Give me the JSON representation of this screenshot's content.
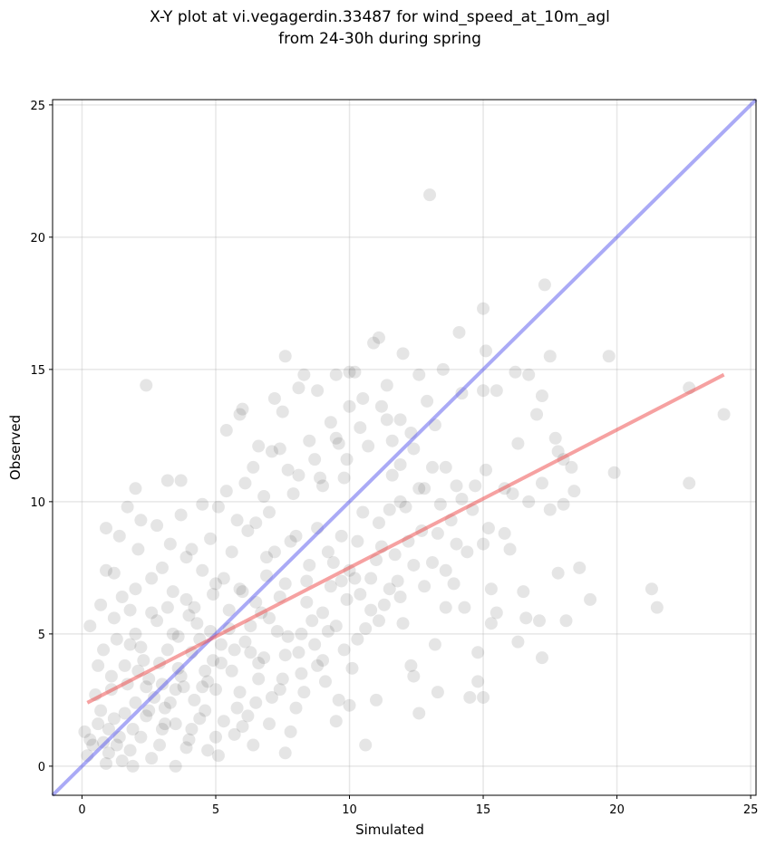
{
  "chart_data": {
    "type": "scatter",
    "title_line1": "X-Y plot at vi.vegagerdin.33487 for wind_speed_at_10m_agl",
    "title_line2": "from 24-30h during spring",
    "xlabel": "Simulated",
    "ylabel": "Observed",
    "xlim": [
      -1.1,
      25.2
    ],
    "ylim": [
      -1.1,
      25.2
    ],
    "xticks": [
      0,
      5,
      10,
      15,
      20,
      25
    ],
    "yticks": [
      0,
      5,
      10,
      15,
      20,
      25
    ],
    "grid": true,
    "point_color": "#000000",
    "point_opacity": 0.1,
    "identity_line": {
      "x": [
        -1.1,
        25.2
      ],
      "y": [
        -1.1,
        25.2
      ],
      "color": "#5555ee"
    },
    "fit_line": {
      "x": [
        0.2,
        24.0
      ],
      "y": [
        2.4,
        14.8
      ],
      "color": "#ee4444"
    },
    "points": [
      [
        13.0,
        21.6
      ],
      [
        17.3,
        18.2
      ],
      [
        14.1,
        16.4
      ],
      [
        10.9,
        16.0
      ],
      [
        11.1,
        16.2
      ],
      [
        15.0,
        17.3
      ],
      [
        12.0,
        15.6
      ],
      [
        15.1,
        15.7
      ],
      [
        17.5,
        15.5
      ],
      [
        7.6,
        15.5
      ],
      [
        19.7,
        15.5
      ],
      [
        13.5,
        15.0
      ],
      [
        10.0,
        14.9
      ],
      [
        10.2,
        14.9
      ],
      [
        8.3,
        14.8
      ],
      [
        9.5,
        14.8
      ],
      [
        12.6,
        14.8
      ],
      [
        16.2,
        14.9
      ],
      [
        16.7,
        14.8
      ],
      [
        11.4,
        14.4
      ],
      [
        2.4,
        14.4
      ],
      [
        8.1,
        14.3
      ],
      [
        15.0,
        14.2
      ],
      [
        15.5,
        14.2
      ],
      [
        22.7,
        14.3
      ],
      [
        7.2,
        13.9
      ],
      [
        17.2,
        14.0
      ],
      [
        14.2,
        14.1
      ],
      [
        10.5,
        13.9
      ],
      [
        11.2,
        13.6
      ],
      [
        5.9,
        13.3
      ],
      [
        6.0,
        13.5
      ],
      [
        11.9,
        13.1
      ],
      [
        13.2,
        12.9
      ],
      [
        17.0,
        13.3
      ],
      [
        24.0,
        13.3
      ],
      [
        5.4,
        12.7
      ],
      [
        9.5,
        12.4
      ],
      [
        17.7,
        12.4
      ],
      [
        16.3,
        12.2
      ],
      [
        12.4,
        12.0
      ],
      [
        7.1,
        11.9
      ],
      [
        17.8,
        11.9
      ],
      [
        13.6,
        11.3
      ],
      [
        18.0,
        11.6
      ],
      [
        18.3,
        11.3
      ],
      [
        11.9,
        11.4
      ],
      [
        8.1,
        11.0
      ],
      [
        15.1,
        11.2
      ],
      [
        19.9,
        11.1
      ],
      [
        9.8,
        10.9
      ],
      [
        14.7,
        10.6
      ],
      [
        12.8,
        10.5
      ],
      [
        17.2,
        10.7
      ],
      [
        18.4,
        10.4
      ],
      [
        22.7,
        10.7
      ],
      [
        15.8,
        10.5
      ],
      [
        16.1,
        10.3
      ],
      [
        16.7,
        10.0
      ],
      [
        14.2,
        10.1
      ],
      [
        13.4,
        9.9
      ],
      [
        11.5,
        9.7
      ],
      [
        17.5,
        9.7
      ],
      [
        18.0,
        9.9
      ],
      [
        15.2,
        9.0
      ],
      [
        15.8,
        8.8
      ],
      [
        12.2,
        8.5
      ],
      [
        14.0,
        8.4
      ],
      [
        15.0,
        8.4
      ],
      [
        16.0,
        8.2
      ],
      [
        13.1,
        7.7
      ],
      [
        17.8,
        7.3
      ],
      [
        18.6,
        7.5
      ],
      [
        10.2,
        7.1
      ],
      [
        13.9,
        6.9
      ],
      [
        15.3,
        6.7
      ],
      [
        16.5,
        6.6
      ],
      [
        13.6,
        6.0
      ],
      [
        14.3,
        6.0
      ],
      [
        19.0,
        6.3
      ],
      [
        21.3,
        6.7
      ],
      [
        21.5,
        6.0
      ],
      [
        15.5,
        5.8
      ],
      [
        16.6,
        5.6
      ],
      [
        17.1,
        5.5
      ],
      [
        18.1,
        5.5
      ],
      [
        15.3,
        5.4
      ],
      [
        11.1,
        5.5
      ],
      [
        13.2,
        4.6
      ],
      [
        16.3,
        4.7
      ],
      [
        14.8,
        4.3
      ],
      [
        17.2,
        4.1
      ],
      [
        12.3,
        3.8
      ],
      [
        14.8,
        3.2
      ],
      [
        12.4,
        3.4
      ],
      [
        13.3,
        2.8
      ],
      [
        14.5,
        2.6
      ],
      [
        15.0,
        2.6
      ],
      [
        11.0,
        2.5
      ],
      [
        12.6,
        2.0
      ],
      [
        9.5,
        1.7
      ],
      [
        10.0,
        2.3
      ],
      [
        10.6,
        0.8
      ],
      [
        7.6,
        0.5
      ],
      [
        2.0,
        10.5
      ],
      [
        2.2,
        9.3
      ],
      [
        3.2,
        10.8
      ],
      [
        3.7,
        10.8
      ],
      [
        6.1,
        10.7
      ],
      [
        9.0,
        10.6
      ],
      [
        0.9,
        7.4
      ],
      [
        1.2,
        7.3
      ],
      [
        0.7,
        6.1
      ],
      [
        0.3,
        5.3
      ],
      [
        0.6,
        3.8
      ],
      [
        0.1,
        1.3
      ],
      [
        0.2,
        0.4
      ],
      [
        0.9,
        0.1
      ],
      [
        1.9,
        0.0
      ],
      [
        3.5,
        0.0
      ],
      [
        3.2,
        6.0
      ],
      [
        1.8,
        5.9
      ],
      [
        2.2,
        4.5
      ],
      [
        3.0,
        3.1
      ],
      [
        4.1,
        4.3
      ],
      [
        4.6,
        3.6
      ],
      [
        5.5,
        5.9
      ],
      [
        6.0,
        6.6
      ],
      [
        6.3,
        4.3
      ],
      [
        5.0,
        2.9
      ],
      [
        3.5,
        1.6
      ],
      [
        1.9,
        1.4
      ],
      [
        1.1,
        2.9
      ],
      [
        2.5,
        3.3
      ],
      [
        3.6,
        3.7
      ],
      [
        2.8,
        5.5
      ],
      [
        4.5,
        7.4
      ],
      [
        5.6,
        8.1
      ],
      [
        6.9,
        7.2
      ],
      [
        7.3,
        5.1
      ],
      [
        8.4,
        6.2
      ],
      [
        8.1,
        4.3
      ],
      [
        7.4,
        2.9
      ],
      [
        6.2,
        1.9
      ],
      [
        4.0,
        1.0
      ],
      [
        3.1,
        2.2
      ],
      [
        1.6,
        3.8
      ],
      [
        1.5,
        6.4
      ],
      [
        2.6,
        7.1
      ],
      [
        4.1,
        8.2
      ],
      [
        3.7,
        9.5
      ],
      [
        5.1,
        9.8
      ],
      [
        6.5,
        9.2
      ],
      [
        7.8,
        8.5
      ],
      [
        8.8,
        9.0
      ],
      [
        9.4,
        7.7
      ],
      [
        9.9,
        6.3
      ],
      [
        9.2,
        5.1
      ],
      [
        8.8,
        3.8
      ],
      [
        8.0,
        2.2
      ],
      [
        7.0,
        1.6
      ],
      [
        5.7,
        1.2
      ],
      [
        4.4,
        1.8
      ],
      [
        2.4,
        1.9
      ],
      [
        1.4,
        1.1
      ],
      [
        0.7,
        2.1
      ],
      [
        1.3,
        4.8
      ],
      [
        2.0,
        6.7
      ],
      [
        3.3,
        8.4
      ],
      [
        4.9,
        6.5
      ],
      [
        5.2,
        4.6
      ],
      [
        4.3,
        5.4
      ],
      [
        3.9,
        6.3
      ],
      [
        6.7,
        5.8
      ],
      [
        7.6,
        6.9
      ],
      [
        8.5,
        7.6
      ],
      [
        9.7,
        8.7
      ],
      [
        10.5,
        9.6
      ],
      [
        11.2,
        8.3
      ],
      [
        11.8,
        7.0
      ],
      [
        10.8,
        5.9
      ],
      [
        10.3,
        4.8
      ],
      [
        9.1,
        3.2
      ],
      [
        8.3,
        2.8
      ],
      [
        6.6,
        3.3
      ],
      [
        5.8,
        2.2
      ],
      [
        4.7,
        0.6
      ],
      [
        2.9,
        0.8
      ],
      [
        1.0,
        0.5
      ],
      [
        0.5,
        2.7
      ],
      [
        1.7,
        3.1
      ],
      [
        2.3,
        4.0
      ],
      [
        3.4,
        5.0
      ],
      [
        4.0,
        5.7
      ],
      [
        5.3,
        7.1
      ],
      [
        6.2,
        8.9
      ],
      [
        7.0,
        9.6
      ],
      [
        7.9,
        10.3
      ],
      [
        8.9,
        10.9
      ],
      [
        9.9,
        11.6
      ],
      [
        10.7,
        12.1
      ],
      [
        11.6,
        11.0
      ],
      [
        12.1,
        9.8
      ],
      [
        12.7,
        8.9
      ],
      [
        11.9,
        6.4
      ],
      [
        10.1,
        3.7
      ],
      [
        9.6,
        2.5
      ],
      [
        7.8,
        1.3
      ],
      [
        6.4,
        0.8
      ],
      [
        5.1,
        0.4
      ],
      [
        4.2,
        2.5
      ],
      [
        3.8,
        3.0
      ],
      [
        2.7,
        2.6
      ],
      [
        2.0,
        2.4
      ],
      [
        1.2,
        1.8
      ],
      [
        0.8,
        0.9
      ],
      [
        1.8,
        0.6
      ],
      [
        3.0,
        1.4
      ],
      [
        4.6,
        2.1
      ],
      [
        5.9,
        2.8
      ],
      [
        6.8,
        4.1
      ],
      [
        7.7,
        4.9
      ],
      [
        8.6,
        5.5
      ],
      [
        9.3,
        6.8
      ],
      [
        10.0,
        7.4
      ],
      [
        11.0,
        7.8
      ],
      [
        11.5,
        6.7
      ],
      [
        10.6,
        5.2
      ],
      [
        9.8,
        4.4
      ],
      [
        9.0,
        4.0
      ],
      [
        8.2,
        3.5
      ],
      [
        7.1,
        2.6
      ],
      [
        6.0,
        1.5
      ],
      [
        5.0,
        1.1
      ],
      [
        3.9,
        0.7
      ],
      [
        2.6,
        0.3
      ],
      [
        1.5,
        0.2
      ],
      [
        0.4,
        0.8
      ],
      [
        1.1,
        3.4
      ],
      [
        2.1,
        3.6
      ],
      [
        3.2,
        4.4
      ],
      [
        4.4,
        4.8
      ],
      [
        5.5,
        5.2
      ],
      [
        6.5,
        6.2
      ],
      [
        7.4,
        6.4
      ],
      [
        8.4,
        7.0
      ],
      [
        9.2,
        8.1
      ],
      [
        10.3,
        8.5
      ],
      [
        11.1,
        9.2
      ],
      [
        11.9,
        10.0
      ],
      [
        12.6,
        10.5
      ],
      [
        13.1,
        11.3
      ],
      [
        12.3,
        12.6
      ],
      [
        11.4,
        13.1
      ],
      [
        10.4,
        12.8
      ],
      [
        9.6,
        12.2
      ],
      [
        8.7,
        11.6
      ],
      [
        7.7,
        11.2
      ],
      [
        6.8,
        10.2
      ],
      [
        5.8,
        9.3
      ],
      [
        4.8,
        8.6
      ],
      [
        3.9,
        7.9
      ],
      [
        3.0,
        7.5
      ],
      [
        2.1,
        8.2
      ],
      [
        1.4,
        8.7
      ],
      [
        0.9,
        9.0
      ],
      [
        1.7,
        9.8
      ],
      [
        2.8,
        9.1
      ],
      [
        4.5,
        9.9
      ],
      [
        5.4,
        10.4
      ],
      [
        6.4,
        11.3
      ],
      [
        7.4,
        12.0
      ],
      [
        8.5,
        12.3
      ],
      [
        9.3,
        13.0
      ],
      [
        10.0,
        13.6
      ],
      [
        6.6,
        12.1
      ],
      [
        7.5,
        13.4
      ],
      [
        8.8,
        14.2
      ],
      [
        11.6,
        12.3
      ],
      [
        12.9,
        13.8
      ],
      [
        4.7,
        3.2
      ],
      [
        4.9,
        4.0
      ],
      [
        5.6,
        3.6
      ],
      [
        6.1,
        4.7
      ],
      [
        3.5,
        2.9
      ],
      [
        2.9,
        3.9
      ],
      [
        3.6,
        4.9
      ],
      [
        4.2,
        6.0
      ],
      [
        5.0,
        6.9
      ],
      [
        5.9,
        6.7
      ],
      [
        6.9,
        7.9
      ],
      [
        7.2,
        8.1
      ],
      [
        8.0,
        8.7
      ],
      [
        6.3,
        5.3
      ],
      [
        7.0,
        5.6
      ],
      [
        5.2,
        3.9
      ],
      [
        4.5,
        3.0
      ],
      [
        3.3,
        2.4
      ],
      [
        2.5,
        2.1
      ],
      [
        1.6,
        2.0
      ],
      [
        1.0,
        1.4
      ],
      [
        0.6,
        1.6
      ],
      [
        0.3,
        1.0
      ],
      [
        1.3,
        0.8
      ],
      [
        2.2,
        1.1
      ],
      [
        3.1,
        1.6
      ],
      [
        4.1,
        1.4
      ],
      [
        5.3,
        1.7
      ],
      [
        6.5,
        2.4
      ],
      [
        7.5,
        3.3
      ],
      [
        8.7,
        4.6
      ],
      [
        9.5,
        5.3
      ],
      [
        10.4,
        6.5
      ],
      [
        11.3,
        6.1
      ],
      [
        12.0,
        5.4
      ],
      [
        12.8,
        6.8
      ],
      [
        13.6,
        7.4
      ],
      [
        14.4,
        8.1
      ],
      [
        13.8,
        9.3
      ],
      [
        14.6,
        9.7
      ],
      [
        2.0,
        5.0
      ],
      [
        2.6,
        5.8
      ],
      [
        3.4,
        6.6
      ],
      [
        1.2,
        5.6
      ],
      [
        0.8,
        4.4
      ],
      [
        1.8,
        4.6
      ],
      [
        2.4,
        3.0
      ],
      [
        3.7,
        3.4
      ],
      [
        4.8,
        5.1
      ],
      [
        5.7,
        4.4
      ],
      [
        6.6,
        3.9
      ],
      [
        7.6,
        4.2
      ],
      [
        8.2,
        5.0
      ],
      [
        9.0,
        5.8
      ],
      [
        9.7,
        7.0
      ],
      [
        10.8,
        7.1
      ],
      [
        11.7,
        8.0
      ],
      [
        12.4,
        7.6
      ],
      [
        13.3,
        8.8
      ],
      [
        14.0,
        10.6
      ]
    ]
  }
}
